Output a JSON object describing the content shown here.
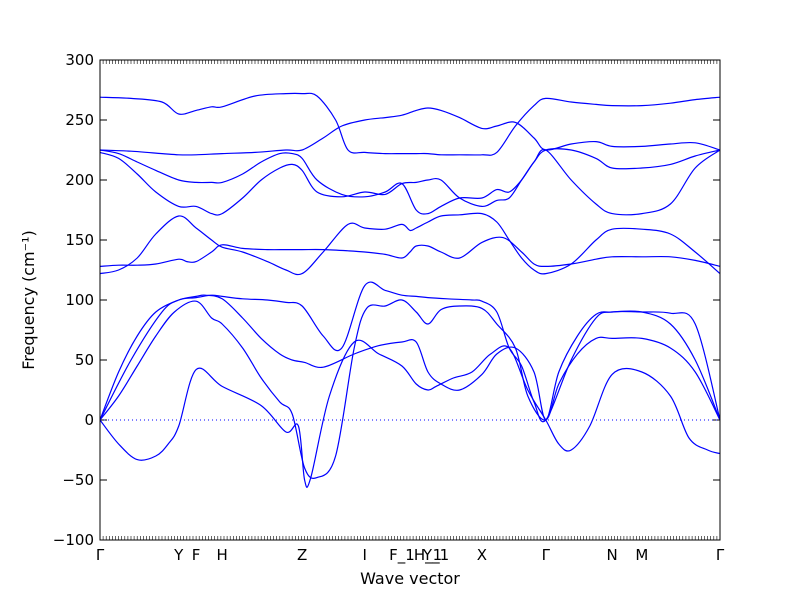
{
  "chart_data": {
    "type": "line",
    "title": "",
    "xlabel": "Wave vector",
    "ylabel": "Frequency (cm⁻¹)",
    "ylim": [
      -100,
      300
    ],
    "xlim": [
      0,
      1
    ],
    "y_ticks": [
      -100,
      -50,
      0,
      50,
      100,
      150,
      200,
      250,
      300
    ],
    "x_ticks": [
      {
        "label": "Γ",
        "x": 0.0
      },
      {
        "label": "Y",
        "x": 0.127
      },
      {
        "label": "F",
        "x": 0.155
      },
      {
        "label": "H",
        "x": 0.197
      },
      {
        "label": "Z",
        "x": 0.326
      },
      {
        "label": "I",
        "x": 0.427
      },
      {
        "label": "F_1",
        "x": 0.487
      },
      {
        "label": "H_1",
        "x": 0.529
      },
      {
        "label": "Y_1",
        "x": 0.542
      },
      {
        "label": "X",
        "x": 0.616
      },
      {
        "label": "Γ",
        "x": 0.719
      },
      {
        "label": "N",
        "x": 0.826
      },
      {
        "label": "M",
        "x": 0.874
      },
      {
        "label": "Γ",
        "x": 1.0
      }
    ],
    "zero_line": {
      "y": 0,
      "color": "#0000ff",
      "style": "dotted"
    },
    "line_color": "#0000ff",
    "series": [
      {
        "x": [
          0,
          0.03,
          0.06,
          0.09,
          0.11,
          0.127,
          0.155,
          0.197,
          0.26,
          0.3,
          0.32,
          0.33,
          0.34,
          0.37,
          0.41,
          0.45,
          0.487,
          0.51,
          0.529,
          0.542,
          0.57,
          0.6,
          0.63,
          0.66,
          0.69,
          0.719,
          0.74,
          0.76,
          0.79,
          0.826,
          0.874,
          0.92,
          0.95,
          0.98,
          1.0
        ],
        "y": [
          0,
          -20,
          -33,
          -30,
          -20,
          -5,
          42,
          28,
          12,
          -10,
          -5,
          -50,
          -48,
          20,
          65,
          55,
          45,
          30,
          25,
          28,
          35,
          40,
          55,
          60,
          25,
          0,
          -20,
          -25,
          -5,
          38,
          40,
          20,
          -15,
          -25,
          -28
        ]
      },
      {
        "x": [
          0,
          0.03,
          0.06,
          0.09,
          0.12,
          0.155,
          0.18,
          0.197,
          0.23,
          0.26,
          0.29,
          0.31,
          0.33,
          0.35,
          0.38,
          0.41,
          0.43,
          0.46,
          0.487,
          0.51,
          0.529,
          0.55,
          0.58,
          0.616,
          0.64,
          0.67,
          0.69,
          0.719,
          0.74,
          0.77,
          0.8,
          0.826,
          0.874,
          0.92,
          0.96,
          1.0
        ],
        "y": [
          0,
          20,
          45,
          70,
          90,
          99,
          85,
          80,
          60,
          35,
          15,
          5,
          -40,
          -48,
          -30,
          60,
          93,
          95,
          100,
          90,
          80,
          92,
          95,
          93,
          80,
          60,
          20,
          0,
          30,
          55,
          68,
          68,
          68,
          60,
          40,
          0
        ]
      },
      {
        "x": [
          0,
          0.03,
          0.06,
          0.09,
          0.127,
          0.155,
          0.17,
          0.197,
          0.23,
          0.26,
          0.29,
          0.31,
          0.33,
          0.36,
          0.41,
          0.45,
          0.487,
          0.51,
          0.529,
          0.55,
          0.58,
          0.616,
          0.64,
          0.67,
          0.7,
          0.719,
          0.74,
          0.77,
          0.8,
          0.826,
          0.874,
          0.92,
          0.96,
          1.0
        ],
        "y": [
          0,
          40,
          70,
          90,
          100,
          103,
          104,
          101,
          85,
          68,
          55,
          50,
          48,
          44,
          55,
          62,
          65,
          65,
          40,
          30,
          25,
          38,
          55,
          60,
          40,
          0,
          40,
          70,
          88,
          90,
          90,
          80,
          50,
          0
        ]
      },
      {
        "x": [
          0,
          0.05,
          0.1,
          0.127,
          0.155,
          0.18,
          0.197,
          0.23,
          0.27,
          0.3,
          0.326,
          0.36,
          0.39,
          0.427,
          0.46,
          0.487,
          0.51,
          0.529,
          0.56,
          0.6,
          0.616,
          0.64,
          0.66,
          0.68,
          0.7,
          0.719,
          0.76,
          0.8,
          0.826,
          0.874,
          0.92,
          0.96,
          1.0
        ],
        "y": [
          0,
          50,
          90,
          100,
          102,
          104,
          103,
          101,
          100,
          98,
          95,
          70,
          60,
          112,
          108,
          104,
          103,
          102,
          101,
          100,
          99,
          90,
          60,
          45,
          15,
          0,
          50,
          85,
          90,
          90,
          89,
          80,
          0
        ]
      },
      {
        "x": [
          0,
          0.03,
          0.06,
          0.09,
          0.127,
          0.14,
          0.155,
          0.18,
          0.197,
          0.23,
          0.27,
          0.3,
          0.326,
          0.36,
          0.4,
          0.427,
          0.46,
          0.487,
          0.5,
          0.51,
          0.529,
          0.55,
          0.58,
          0.616,
          0.65,
          0.68,
          0.7,
          0.719,
          0.76,
          0.8,
          0.826,
          0.874,
          0.92,
          0.96,
          1.0
        ],
        "y": [
          128,
          129,
          129,
          130,
          134,
          132,
          132,
          140,
          146,
          143,
          142,
          142,
          142,
          142,
          141,
          140,
          138,
          135,
          140,
          145,
          145,
          140,
          135,
          148,
          152,
          140,
          130,
          128,
          130,
          134,
          136,
          136,
          136,
          133,
          128
        ]
      },
      {
        "x": [
          0,
          0.03,
          0.06,
          0.09,
          0.127,
          0.155,
          0.18,
          0.197,
          0.23,
          0.27,
          0.3,
          0.326,
          0.36,
          0.4,
          0.427,
          0.46,
          0.487,
          0.5,
          0.51,
          0.529,
          0.55,
          0.58,
          0.616,
          0.64,
          0.66,
          0.68,
          0.7,
          0.719,
          0.76,
          0.8,
          0.826,
          0.874,
          0.92,
          0.96,
          1.0
        ],
        "y": [
          122,
          125,
          135,
          155,
          170,
          160,
          150,
          144,
          140,
          132,
          125,
          122,
          140,
          163,
          160,
          159,
          163,
          158,
          160,
          165,
          170,
          171,
          172,
          165,
          150,
          135,
          125,
          122,
          130,
          150,
          159,
          159,
          155,
          140,
          122
        ]
      },
      {
        "x": [
          0,
          0.03,
          0.06,
          0.09,
          0.127,
          0.155,
          0.18,
          0.197,
          0.23,
          0.26,
          0.29,
          0.31,
          0.326,
          0.35,
          0.39,
          0.427,
          0.46,
          0.487,
          0.51,
          0.529,
          0.55,
          0.58,
          0.616,
          0.64,
          0.66,
          0.68,
          0.7,
          0.719,
          0.76,
          0.8,
          0.826,
          0.874,
          0.92,
          0.96,
          1.0
        ],
        "y": [
          223,
          218,
          205,
          190,
          178,
          178,
          172,
          172,
          185,
          200,
          210,
          213,
          208,
          190,
          186,
          190,
          188,
          197,
          198,
          200,
          200,
          185,
          178,
          183,
          185,
          200,
          215,
          225,
          200,
          180,
          172,
          172,
          180,
          210,
          225
        ]
      },
      {
        "x": [
          0,
          0.03,
          0.06,
          0.09,
          0.127,
          0.155,
          0.18,
          0.197,
          0.23,
          0.26,
          0.29,
          0.31,
          0.326,
          0.35,
          0.39,
          0.427,
          0.46,
          0.487,
          0.51,
          0.529,
          0.55,
          0.58,
          0.616,
          0.64,
          0.66,
          0.68,
          0.7,
          0.719,
          0.76,
          0.8,
          0.826,
          0.874,
          0.92,
          0.96,
          1.0
        ],
        "y": [
          225,
          222,
          215,
          208,
          200,
          198,
          198,
          198,
          205,
          215,
          222,
          222,
          218,
          200,
          188,
          186,
          190,
          197,
          175,
          172,
          178,
          185,
          185,
          192,
          190,
          200,
          215,
          225,
          225,
          218,
          210,
          210,
          213,
          220,
          225
        ]
      },
      {
        "x": [
          0,
          0.05,
          0.1,
          0.127,
          0.155,
          0.197,
          0.25,
          0.3,
          0.326,
          0.36,
          0.39,
          0.427,
          0.46,
          0.487,
          0.51,
          0.529,
          0.55,
          0.58,
          0.616,
          0.64,
          0.67,
          0.7,
          0.719,
          0.76,
          0.8,
          0.826,
          0.874,
          0.92,
          0.96,
          1.0
        ],
        "y": [
          225,
          224,
          222,
          221,
          221,
          222,
          223,
          225,
          225,
          235,
          245,
          250,
          252,
          254,
          258,
          260,
          258,
          252,
          243,
          245,
          248,
          235,
          225,
          230,
          232,
          228,
          228,
          230,
          231,
          225
        ]
      },
      {
        "x": [
          0,
          0.05,
          0.1,
          0.127,
          0.155,
          0.18,
          0.197,
          0.25,
          0.3,
          0.326,
          0.35,
          0.38,
          0.4,
          0.427,
          0.46,
          0.487,
          0.51,
          0.529,
          0.55,
          0.58,
          0.616,
          0.64,
          0.67,
          0.7,
          0.719,
          0.76,
          0.8,
          0.826,
          0.874,
          0.92,
          0.96,
          1.0
        ],
        "y": [
          269,
          268,
          265,
          255,
          258,
          261,
          261,
          270,
          272,
          272,
          270,
          250,
          225,
          223,
          222,
          222,
          222,
          222,
          221,
          221,
          221,
          223,
          245,
          262,
          268,
          265,
          263,
          262,
          262,
          264,
          267,
          269
        ]
      }
    ]
  }
}
